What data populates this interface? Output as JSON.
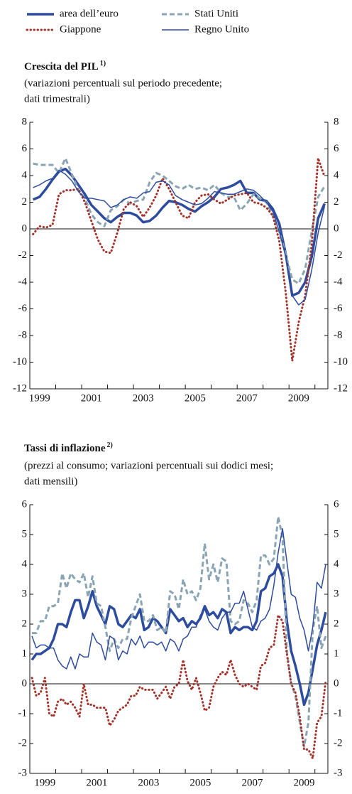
{
  "chart_data": [
    {
      "type": "line",
      "title": "Crescita del PIL",
      "title_note": "1)",
      "subtitle": [
        "(variazioni percentuali sul periodo precedente;",
        "dati trimestrali)"
      ],
      "categories": [
        null,
        "1999",
        null,
        null,
        null,
        null,
        null,
        null,
        null,
        "2001",
        null,
        null,
        null,
        null,
        null,
        null,
        null,
        "2003",
        null,
        null,
        null,
        null,
        null,
        null,
        null,
        "2005",
        null,
        null,
        null,
        null,
        null,
        null,
        null,
        "2007",
        null,
        null,
        null,
        null,
        null,
        null,
        null,
        "2009",
        null,
        null,
        null,
        null
      ],
      "ylim": [
        -12,
        8
      ],
      "yticks": [
        -12,
        -10,
        -8,
        -6,
        -4,
        -2,
        0,
        2,
        4,
        6,
        8
      ],
      "grid": false,
      "series": [
        {
          "name": "area dell’euro",
          "color": "#2e4c9e",
          "style": "thick",
          "values": [
            2.2,
            2.4,
            3.0,
            3.7,
            4.3,
            4.5,
            4.0,
            3.3,
            2.6,
            1.8,
            1.3,
            0.8,
            0.5,
            0.9,
            1.2,
            1.2,
            1.0,
            0.5,
            0.6,
            1.0,
            1.6,
            2.1,
            2.0,
            1.8,
            1.5,
            1.3,
            1.7,
            2.0,
            2.4,
            3.0,
            3.1,
            3.3,
            3.6,
            2.7,
            2.7,
            2.2,
            2.1,
            1.5,
            0.4,
            -1.9,
            -5.0,
            -4.8,
            -4.0,
            -2.1,
            0.8,
            1.9
          ]
        },
        {
          "name": "Stati Uniti",
          "color": "#8aa4b4",
          "style": "dashed",
          "values": [
            4.9,
            4.8,
            4.8,
            4.8,
            4.2,
            5.3,
            4.1,
            2.9,
            2.3,
            1.1,
            0.5,
            0.2,
            1.4,
            1.7,
            2.2,
            1.9,
            2.1,
            2.2,
            3.5,
            4.2,
            4.0,
            3.6,
            3.2,
            3.0,
            3.3,
            3.0,
            3.1,
            2.9,
            3.3,
            2.7,
            2.4,
            2.4,
            1.4,
            1.9,
            2.6,
            2.3,
            2.0,
            1.0,
            -0.2,
            -1.9,
            -3.8,
            -4.1,
            -3.0,
            -0.2,
            2.4,
            3.2
          ]
        },
        {
          "name": "Giappone",
          "color": "#a3322a",
          "style": "dotted",
          "values": [
            -0.4,
            0.2,
            0.1,
            0.3,
            2.6,
            2.9,
            2.9,
            3.0,
            2.0,
            0.6,
            -0.8,
            -1.7,
            -1.8,
            -0.3,
            1.5,
            2.0,
            1.7,
            0.9,
            1.6,
            2.5,
            3.8,
            3.0,
            2.0,
            1.0,
            0.8,
            2.0,
            2.5,
            2.6,
            2.2,
            1.9,
            2.2,
            2.5,
            2.6,
            2.7,
            2.0,
            1.9,
            1.6,
            1.0,
            -0.9,
            -4.8,
            -9.9,
            -7.0,
            -5.0,
            -1.2,
            5.3,
            3.9
          ]
        },
        {
          "name": "Regno Unito",
          "color": "#2e4c9e",
          "style": "solid",
          "values": [
            3.1,
            3.3,
            3.6,
            3.8,
            4.4,
            4.1,
            3.6,
            2.8,
            2.3,
            2.3,
            2.2,
            2.1,
            1.6,
            1.8,
            2.2,
            2.4,
            2.3,
            2.7,
            2.8,
            3.5,
            3.6,
            3.3,
            2.5,
            2.2,
            2.0,
            1.8,
            1.9,
            2.3,
            2.8,
            2.7,
            2.6,
            2.6,
            2.8,
            3.0,
            2.9,
            2.5,
            2.0,
            1.3,
            -0.2,
            -2.1,
            -5.0,
            -5.7,
            -5.3,
            -3.1,
            -0.3,
            1.7
          ]
        }
      ]
    },
    {
      "type": "line",
      "title": "Tassi di inflazione",
      "title_note": "2)",
      "subtitle": [
        "(prezzi al consumo; variazioni percentuali sui dodici mesi;",
        "dati mensili)"
      ],
      "categories": [
        null,
        null,
        null,
        "1999",
        null,
        null,
        null,
        null,
        null,
        null,
        null,
        null,
        null,
        null,
        null,
        "2001",
        null,
        null,
        null,
        null,
        null,
        null,
        null,
        null,
        null,
        null,
        null,
        "2003",
        null,
        null,
        null,
        null,
        null,
        null,
        null,
        null,
        null,
        null,
        null,
        "2005",
        null,
        null,
        null,
        null,
        null,
        null,
        null,
        null,
        null,
        null,
        null,
        "2007",
        null,
        null,
        null,
        null,
        null,
        null,
        null,
        null,
        null,
        null,
        null,
        "2009",
        null,
        null,
        null,
        null,
        null
      ],
      "ylim": [
        -3,
        6
      ],
      "yticks": [
        -3,
        -2,
        -1,
        0,
        1,
        2,
        3,
        4,
        5,
        6
      ],
      "grid": false,
      "series": [
        {
          "name": "area dell’euro",
          "color": "#2e4c9e",
          "style": "thick",
          "values": [
            0.8,
            1.0,
            1.0,
            1.1,
            1.2,
            1.5,
            2.0,
            2.0,
            1.9,
            2.4,
            2.8,
            2.8,
            2.2,
            2.6,
            3.1,
            2.6,
            2.3,
            2.0,
            2.6,
            2.5,
            2.0,
            1.9,
            2.1,
            2.3,
            2.2,
            2.5,
            1.8,
            1.9,
            2.2,
            2.1,
            1.9,
            1.7,
            2.5,
            2.3,
            2.1,
            2.2,
            1.9,
            2.1,
            2.0,
            2.2,
            2.6,
            2.3,
            2.4,
            2.2,
            2.5,
            2.4,
            1.7,
            1.9,
            1.8,
            1.9,
            1.9,
            1.8,
            2.1,
            3.1,
            3.2,
            3.6,
            3.7,
            4.0,
            3.6,
            2.1,
            1.1,
            0.6,
            0.0,
            -0.7,
            -0.3,
            0.5,
            1.3,
            1.8,
            2.4
          ]
        },
        {
          "name": "Stati Uniti",
          "color": "#8aa4b4",
          "style": "dashed",
          "values": [
            1.7,
            1.7,
            2.1,
            2.1,
            2.6,
            2.6,
            2.7,
            3.7,
            3.2,
            3.7,
            3.5,
            3.4,
            3.7,
            2.9,
            3.6,
            2.7,
            2.6,
            1.9,
            1.1,
            1.5,
            1.2,
            1.5,
            1.5,
            2.2,
            2.6,
            3.0,
            2.1,
            2.1,
            2.3,
            1.8,
            1.9,
            1.7,
            3.1,
            3.0,
            2.5,
            3.5,
            3.0,
            3.1,
            2.8,
            3.2,
            4.7,
            3.5,
            4.0,
            3.4,
            4.2,
            4.1,
            2.1,
            2.0,
            2.1,
            2.8,
            2.7,
            2.4,
            2.8,
            4.3,
            4.3,
            4.0,
            4.2,
            5.6,
            4.9,
            1.1,
            0.0,
            -0.4,
            -1.3,
            -2.1,
            -1.3,
            1.8,
            2.6,
            1.2,
            1.6
          ]
        },
        {
          "name": "Giappone",
          "color": "#a3322a",
          "style": "dotted",
          "values": [
            0.2,
            -0.4,
            -0.3,
            0.2,
            -1.0,
            -1.1,
            -0.6,
            -0.5,
            -0.7,
            -0.6,
            -0.8,
            -1.1,
            0.0,
            -0.7,
            -0.7,
            -0.8,
            -0.8,
            -0.8,
            -1.4,
            -1.2,
            -0.9,
            -0.8,
            -0.7,
            -0.4,
            -0.4,
            -0.1,
            -0.2,
            -0.2,
            -0.2,
            -0.5,
            -0.3,
            -0.1,
            -0.5,
            -0.1,
            0.0,
            0.8,
            0.1,
            -0.2,
            0.2,
            -0.3,
            -0.9,
            -0.8,
            -0.1,
            0.2,
            0.4,
            0.3,
            0.8,
            0.3,
            0.0,
            -0.1,
            0.0,
            -0.1,
            -0.2,
            0.6,
            0.7,
            1.2,
            1.3,
            2.3,
            2.1,
            1.0,
            0.0,
            -0.3,
            -1.1,
            -2.2,
            -2.2,
            -2.5,
            -1.3,
            -1.1,
            0.1
          ]
        },
        {
          "name": "Regno Unito",
          "color": "#2e4c9e",
          "style": "solid",
          "values": [
            1.6,
            1.2,
            1.3,
            1.3,
            1.2,
            1.2,
            0.8,
            0.6,
            0.5,
            0.9,
            0.5,
            1.0,
            0.9,
            0.9,
            1.7,
            1.4,
            1.3,
            0.8,
            1.6,
            1.5,
            0.8,
            1.1,
            1.0,
            1.5,
            1.3,
            1.6,
            1.2,
            1.4,
            1.4,
            1.3,
            1.4,
            1.1,
            1.5,
            1.4,
            1.1,
            1.5,
            1.6,
            1.9,
            1.9,
            2.3,
            2.5,
            2.1,
            1.9,
            1.8,
            2.2,
            2.4,
            2.4,
            2.7,
            2.7,
            3.1,
            2.5,
            1.9,
            1.8,
            2.1,
            2.2,
            2.5,
            3.3,
            4.4,
            5.2,
            4.1,
            3.0,
            2.9,
            2.2,
            1.8,
            1.1,
            1.9,
            3.4,
            3.2,
            4.0
          ]
        }
      ]
    }
  ]
}
